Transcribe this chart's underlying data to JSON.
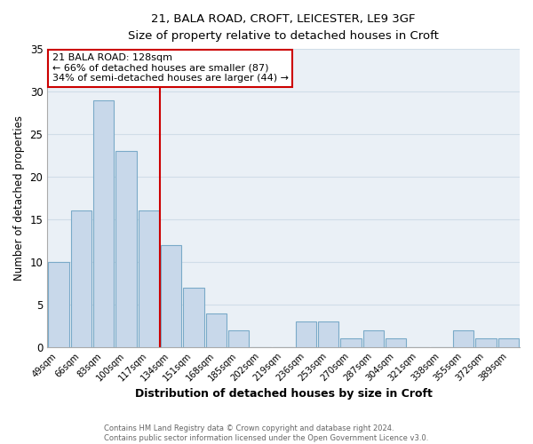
{
  "title_line1": "21, BALA ROAD, CROFT, LEICESTER, LE9 3GF",
  "title_line2": "Size of property relative to detached houses in Croft",
  "xlabel": "Distribution of detached houses by size in Croft",
  "ylabel": "Number of detached properties",
  "bar_labels": [
    "49sqm",
    "66sqm",
    "83sqm",
    "100sqm",
    "117sqm",
    "134sqm",
    "151sqm",
    "168sqm",
    "185sqm",
    "202sqm",
    "219sqm",
    "236sqm",
    "253sqm",
    "270sqm",
    "287sqm",
    "304sqm",
    "321sqm",
    "338sqm",
    "355sqm",
    "372sqm",
    "389sqm"
  ],
  "bar_values": [
    10,
    16,
    29,
    23,
    16,
    12,
    7,
    4,
    2,
    0,
    0,
    3,
    3,
    1,
    2,
    1,
    0,
    0,
    2,
    1,
    1
  ],
  "bar_color": "#c8d8ea",
  "bar_edge_color": "#7aaac8",
  "ylim": [
    0,
    35
  ],
  "yticks": [
    0,
    5,
    10,
    15,
    20,
    25,
    30,
    35
  ],
  "annotation_text": "21 BALA ROAD: 128sqm\n← 66% of detached houses are smaller (87)\n34% of semi-detached houses are larger (44) →",
  "annotation_box_color": "#ffffff",
  "annotation_box_edge": "#cc0000",
  "red_line_color": "#cc0000",
  "footer_line1": "Contains HM Land Registry data © Crown copyright and database right 2024.",
  "footer_line2": "Contains public sector information licensed under the Open Government Licence v3.0.",
  "grid_color": "#d0dde8",
  "bg_color": "#eaf0f6"
}
